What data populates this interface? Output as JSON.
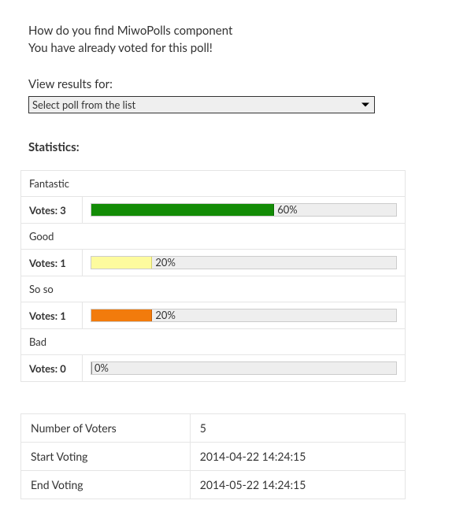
{
  "header": {
    "title": "How do you find MiwoPolls component",
    "subtitle": "You have already voted for this poll!"
  },
  "selector": {
    "label": "View results for:",
    "selected": "Select poll from the list"
  },
  "stats_heading": "Statistics:",
  "results": {
    "votes_prefix": "Votes:",
    "track_bg": "#eeeeee",
    "options": [
      {
        "label": "Fantastic",
        "votes": 3,
        "percent": 60,
        "percent_label": "60%",
        "bar_color": "#138c06",
        "bar_border": "#0a6b02"
      },
      {
        "label": "Good",
        "votes": 1,
        "percent": 20,
        "percent_label": "20%",
        "bar_color": "#fdfb9e",
        "bar_border": "#d7d26a"
      },
      {
        "label": "So so",
        "votes": 1,
        "percent": 20,
        "percent_label": "20%",
        "bar_color": "#f27b0c",
        "bar_border": "#c96106"
      },
      {
        "label": "Bad",
        "votes": 0,
        "percent": 0,
        "percent_label": "0%",
        "bar_color": "#888888",
        "bar_border": "#888888"
      }
    ]
  },
  "meta": {
    "rows": [
      {
        "label": "Number of Voters",
        "value": "5"
      },
      {
        "label": "Start Voting",
        "value": "2014-04-22 14:24:15"
      },
      {
        "label": "End Voting",
        "value": "2014-05-22 14:24:15"
      }
    ]
  }
}
